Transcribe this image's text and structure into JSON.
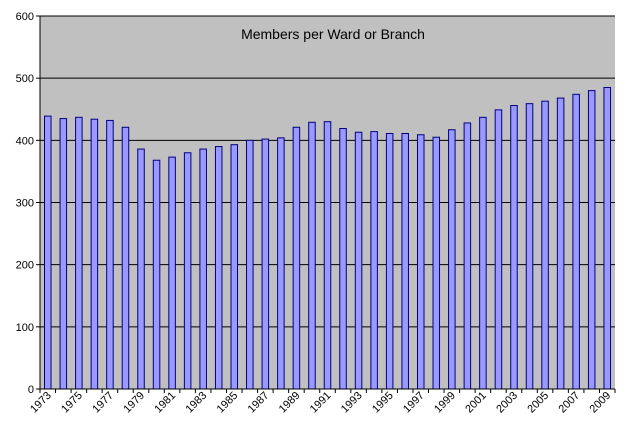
{
  "chart_data": {
    "type": "bar",
    "title": "Members per Ward or Branch",
    "xlabel": "",
    "ylabel": "",
    "ylim": [
      0,
      600
    ],
    "yticks": [
      0,
      100,
      200,
      300,
      400,
      500,
      600
    ],
    "grid": true,
    "legend": "none",
    "categories": [
      "1973",
      "1974",
      "1975",
      "1976",
      "1977",
      "1978",
      "1979",
      "1980",
      "1981",
      "1982",
      "1983",
      "1984",
      "1985",
      "1986",
      "1987",
      "1988",
      "1989",
      "1990",
      "1991",
      "1992",
      "1993",
      "1994",
      "1995",
      "1996",
      "1997",
      "1998",
      "1999",
      "2000",
      "2001",
      "2002",
      "2003",
      "2004",
      "2005",
      "2006",
      "2007",
      "2008",
      "2009"
    ],
    "tick_labels": [
      "1973",
      "",
      "1975",
      "",
      "1977",
      "",
      "1979",
      "",
      "1981",
      "",
      "1983",
      "",
      "1985",
      "",
      "1987",
      "",
      "1989",
      "",
      "1991",
      "",
      "1993",
      "",
      "1995",
      "",
      "1997",
      "",
      "1999",
      "",
      "2001",
      "",
      "2003",
      "",
      "2005",
      "",
      "2007",
      "",
      "2009"
    ],
    "values": [
      439,
      435,
      437,
      434,
      432,
      421,
      386,
      368,
      373,
      380,
      386,
      390,
      393,
      400,
      402,
      404,
      421,
      429,
      430,
      419,
      413,
      414,
      411,
      411,
      409,
      405,
      417,
      428,
      437,
      449,
      456,
      459,
      463,
      468,
      474,
      480,
      485
    ],
    "colors": {
      "plot_background": "#c0c0c0",
      "bar_fill": "#9999ff",
      "bar_stroke": "#000080",
      "gridline": "#000000",
      "axis": "#000000"
    }
  }
}
